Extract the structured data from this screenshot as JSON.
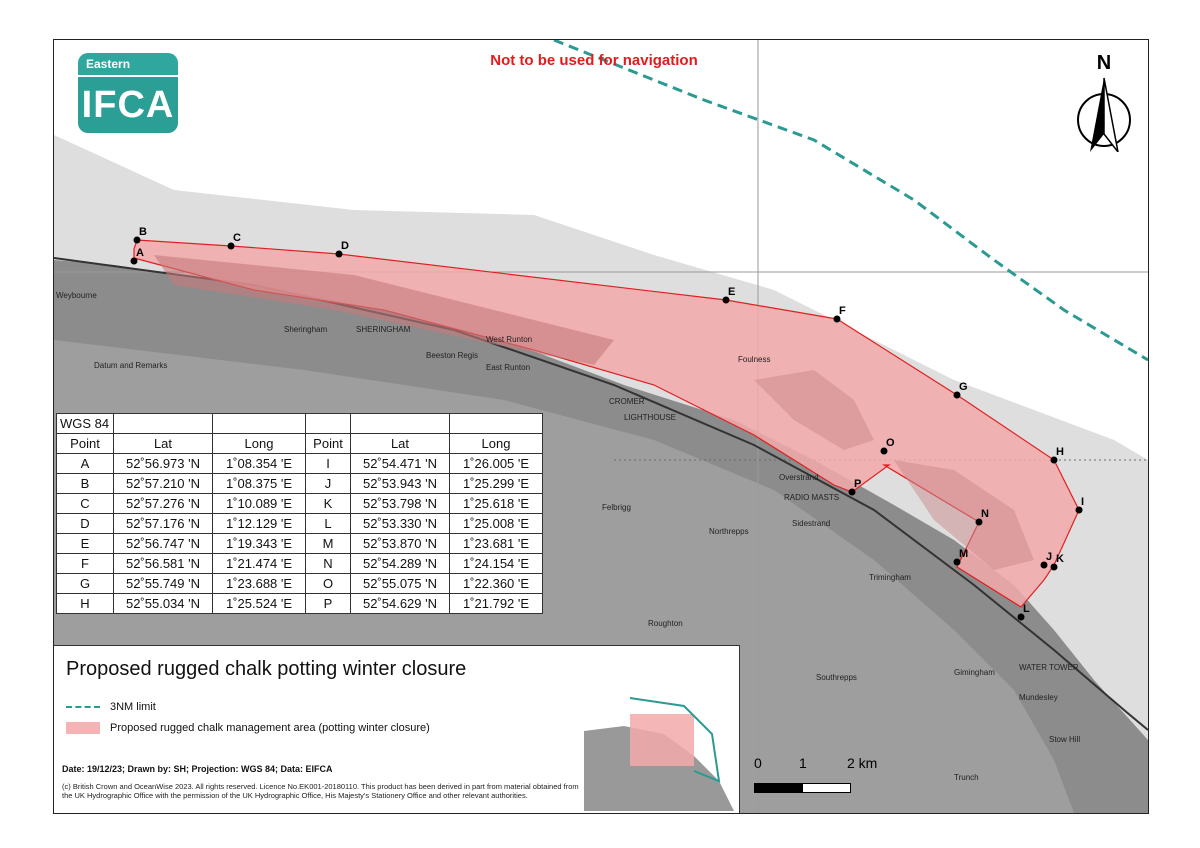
{
  "logo": {
    "top": "Eastern",
    "main": "IFCA"
  },
  "warning": "Not to be used for navigation",
  "north_label": "N",
  "table": {
    "title": "WGS 84",
    "headers": [
      "Point",
      "Lat",
      "Long",
      "Point",
      "Lat",
      "Long"
    ],
    "rows": [
      [
        "A",
        "52˚56.973 'N",
        "1˚08.354 'E",
        "I",
        "52˚54.471 'N",
        "1˚26.005 'E"
      ],
      [
        "B",
        "52˚57.210 'N",
        "1˚08.375 'E",
        "J",
        "52˚53.943 'N",
        "1˚25.299 'E"
      ],
      [
        "C",
        "52˚57.276 'N",
        "1˚10.089 'E",
        "K",
        "52˚53.798 'N",
        "1˚25.618 'E"
      ],
      [
        "D",
        "52˚57.176 'N",
        "1˚12.129 'E",
        "L",
        "52˚53.330 'N",
        "1˚25.008 'E"
      ],
      [
        "E",
        "52˚56.747 'N",
        "1˚19.343 'E",
        "M",
        "52˚53.870 'N",
        "1˚23.681 'E"
      ],
      [
        "F",
        "52˚56.581 'N",
        "1˚21.474 'E",
        "N",
        "52˚54.289 'N",
        "1˚24.154 'E"
      ],
      [
        "G",
        "52˚55.749 'N",
        "1˚23.688 'E",
        "O",
        "52˚55.075 'N",
        "1˚22.360 'E"
      ],
      [
        "H",
        "52˚55.034 'N",
        "1˚25.524 'E",
        "P",
        "52˚54.629 'N",
        "1˚21.792 'E"
      ]
    ]
  },
  "legend": {
    "title": "Proposed rugged chalk potting winter closure",
    "item_3nm": "3NM limit",
    "item_area": "Proposed rugged chalk management area (potting winter closure)",
    "meta": "Date: 19/12/23; Drawn by: SH; Projection: WGS 84; Data: EIFCA",
    "copyright": "(c) British Crown and OceanWise 2023. All rights reserved. Licence No.EK001-20180110. This product has been derived in part from material obtained from the UK Hydrographic Office with the permission of the UK Hydrographic Office, His Majesty's Stationery Office and other relevant authorities."
  },
  "scale": {
    "l0": "0",
    "l1": "1",
    "l2": "2 km"
  },
  "points": [
    "A",
    "B",
    "C",
    "D",
    "E",
    "F",
    "G",
    "H",
    "I",
    "J",
    "K",
    "L",
    "M",
    "N",
    "O",
    "P"
  ],
  "places": {
    "weybourne": "Weybourne",
    "sheringham": "Sheringham",
    "sheringham_caps": "SHERINGHAM",
    "beeston": "Beeston Regis",
    "west_runton": "West Runton",
    "east_runton": "East Runton",
    "cromer": "CROMER",
    "lighthouse": "LIGHTHOUSE",
    "felbrigg": "Felbrigg",
    "overstrand": "Overstrand",
    "radio_masts": "RADIO MASTS",
    "northrepps": "Northrepps",
    "sidestrand": "Sidestrand",
    "trimingham": "Trimingham",
    "roughton": "Roughton",
    "southrepps": "Southrepps",
    "gimingham": "Gimingham",
    "mundesley": "Mundesley",
    "water_tower": "WATER TOWER",
    "stow_hill": "Stow Hill",
    "trunch": "Trunch",
    "foulness": "Foulness",
    "datum": "Datum and Remarks"
  },
  "colors": {
    "area_fill": "#f3a9ab",
    "area_stroke": "#e02020",
    "nm_limit": "#2a9a92",
    "warning": "#e31b1b",
    "land": "#8c8c8c",
    "sea": "#ffffff",
    "shallow": "#d9d9d9"
  }
}
